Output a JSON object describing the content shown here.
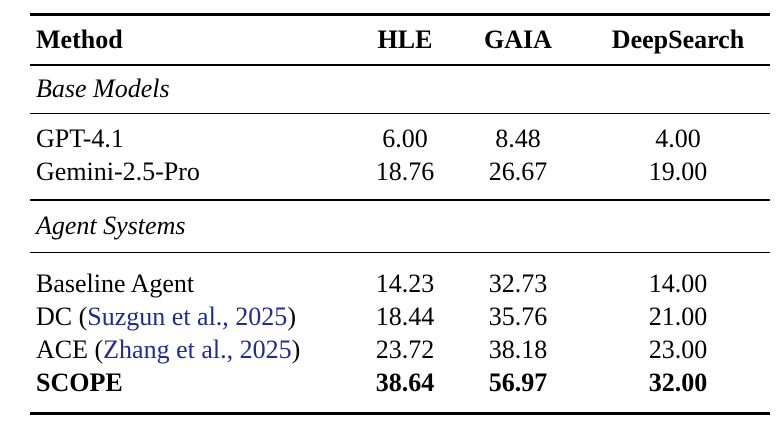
{
  "colors": {
    "background": "#ffffff",
    "text": "#000000",
    "citation_blue": "#212d8d"
  },
  "table": {
    "headers": [
      "Method",
      "HLE",
      "GAIA",
      "DeepSearch"
    ],
    "sections": [
      {
        "label": "Base Models",
        "rows": [
          {
            "method": "GPT-4.1",
            "values": [
              "6.00",
              "8.48",
              "4.00"
            ],
            "bold": false
          },
          {
            "method": "Gemini-2.5-Pro",
            "values": [
              "18.76",
              "26.67",
              "19.00"
            ],
            "bold": false
          }
        ]
      },
      {
        "label": "Agent Systems",
        "rows": [
          {
            "method": "Baseline Agent",
            "values": [
              "14.23",
              "32.73",
              "14.00"
            ],
            "bold": false
          },
          {
            "method_prefix": "DC (",
            "citation": "Suzgun et al., 2025",
            "method_suffix": ")",
            "values": [
              "18.44",
              "35.76",
              "21.00"
            ],
            "bold": false
          },
          {
            "method_prefix": "ACE (",
            "citation": "Zhang et al., 2025",
            "method_suffix": ")",
            "values": [
              "23.72",
              "38.18",
              "23.00"
            ],
            "bold": false
          },
          {
            "method": "SCOPE",
            "values": [
              "38.64",
              "56.97",
              "32.00"
            ],
            "bold": true
          }
        ]
      }
    ]
  }
}
